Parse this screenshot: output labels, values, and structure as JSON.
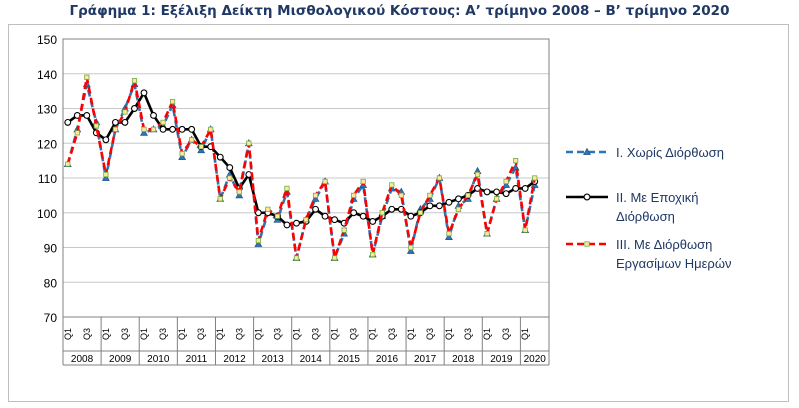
{
  "chart_data": {
    "type": "line",
    "title": "Γράφημα 1: Εξέλιξη Δείκτη Μισθολογικού Κόστους:  Α’ τρίμηνο 2008 – Β’ τρίμηνο 2020",
    "xlabel": "",
    "ylabel": "",
    "ylim": [
      70,
      150
    ],
    "yticks": [
      70,
      80,
      90,
      100,
      110,
      120,
      130,
      140,
      150
    ],
    "grid": "horizontal",
    "legend_position": "right",
    "years": [
      "2008",
      "2009",
      "2010",
      "2011",
      "2012",
      "2013",
      "2014",
      "2015",
      "2016",
      "2017",
      "2018",
      "2019",
      "2020"
    ],
    "quarter_tick_labels": [
      "Q1",
      "Q3"
    ],
    "x": [
      "2008Q1",
      "2008Q2",
      "2008Q3",
      "2008Q4",
      "2009Q1",
      "2009Q2",
      "2009Q3",
      "2009Q4",
      "2010Q1",
      "2010Q2",
      "2010Q3",
      "2010Q4",
      "2011Q1",
      "2011Q2",
      "2011Q3",
      "2011Q4",
      "2012Q1",
      "2012Q2",
      "2012Q3",
      "2012Q4",
      "2013Q1",
      "2013Q2",
      "2013Q3",
      "2013Q4",
      "2014Q1",
      "2014Q2",
      "2014Q3",
      "2014Q4",
      "2015Q1",
      "2015Q2",
      "2015Q3",
      "2015Q4",
      "2016Q1",
      "2016Q2",
      "2016Q3",
      "2016Q4",
      "2017Q1",
      "2017Q2",
      "2017Q3",
      "2017Q4",
      "2018Q1",
      "2018Q2",
      "2018Q3",
      "2018Q4",
      "2019Q1",
      "2019Q2",
      "2019Q3",
      "2019Q4",
      "2020Q1",
      "2020Q2"
    ],
    "series": [
      {
        "name": "Ι. Χωρίς Διόρθωση",
        "color": "#2e75b6",
        "style": "dashed",
        "marker": "triangle",
        "values": [
          114,
          124,
          137,
          126,
          110,
          124,
          130,
          137,
          123,
          124,
          125,
          131,
          116,
          121,
          118,
          124,
          104,
          111,
          105,
          120,
          91,
          100,
          98,
          106,
          87,
          98,
          104,
          109,
          87,
          94,
          104,
          108,
          88,
          99,
          107,
          106,
          89,
          101,
          104,
          110,
          93,
          102,
          104,
          112,
          94,
          104,
          108,
          113,
          95,
          108
        ]
      },
      {
        "name": "ΙΙ. Με Εποχική Διόρθωση",
        "color": "#000000",
        "style": "solid",
        "marker": "circle",
        "values": [
          126,
          128,
          128,
          123,
          121,
          126,
          126,
          130,
          134.5,
          128,
          124,
          124,
          124,
          124,
          119,
          119,
          116,
          113,
          107,
          111,
          100,
          100,
          99,
          96.5,
          97,
          97.5,
          101,
          99,
          98,
          97,
          100,
          99,
          97.5,
          99,
          101,
          101,
          99,
          100,
          102,
          102,
          103,
          104,
          105,
          107,
          106,
          106,
          105.5,
          107,
          107,
          109
        ]
      },
      {
        "name": "ΙΙΙ. Με Διόρθωση Εργασίμων Ημερών",
        "color": "#ff0000",
        "style": "dashed",
        "marker": "square",
        "values": [
          114,
          123,
          139,
          125,
          111,
          124,
          129,
          138,
          124,
          124,
          126,
          132,
          117,
          121,
          119,
          124,
          104,
          110,
          106,
          120,
          92,
          101,
          99,
          107,
          87,
          98,
          105,
          109,
          87,
          95,
          105,
          109,
          88,
          100,
          108,
          105,
          90,
          100,
          105,
          110,
          94,
          101,
          105,
          111,
          94,
          104,
          109,
          115,
          95,
          110
        ]
      }
    ]
  },
  "legend": [
    {
      "lines": [
        "Ι. Χωρίς Διόρθωση"
      ]
    },
    {
      "lines": [
        "ΙΙ. Με Εποχική",
        "Διόρθωση"
      ]
    },
    {
      "lines": [
        "ΙΙΙ. Με Διόρθωση",
        "Εργασίμων Ημερών"
      ]
    }
  ]
}
